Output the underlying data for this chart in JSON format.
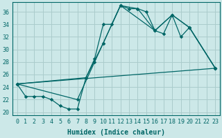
{
  "xlabel": "Humidex (Indice chaleur)",
  "bg_color": "#cce8e8",
  "grid_color": "#aacccc",
  "line_color": "#006666",
  "xlim": [
    -0.5,
    23.5
  ],
  "ylim": [
    19.5,
    37.5
  ],
  "xticks": [
    0,
    1,
    2,
    3,
    4,
    5,
    6,
    7,
    8,
    9,
    10,
    11,
    12,
    13,
    14,
    15,
    16,
    17,
    18,
    19,
    20,
    21,
    22,
    23
  ],
  "yticks": [
    20,
    22,
    24,
    26,
    28,
    30,
    32,
    34,
    36
  ],
  "line1_x": [
    0,
    1,
    2,
    3,
    4,
    5,
    6,
    7,
    8,
    9,
    10,
    11,
    12,
    13,
    14,
    15,
    16,
    17,
    18,
    19,
    20,
    23
  ],
  "line1_y": [
    24.5,
    22.5,
    22.5,
    22.5,
    22,
    21,
    20.5,
    20.5,
    25.5,
    28.5,
    34,
    34,
    37,
    36.5,
    36.5,
    36,
    33,
    32.5,
    35.5,
    32,
    33.5,
    27
  ],
  "line2_x": [
    0,
    7,
    9,
    10,
    12,
    16,
    18,
    20,
    23
  ],
  "line2_y": [
    24.5,
    22,
    28,
    31,
    37,
    33,
    35.5,
    33.5,
    27
  ],
  "line3_x": [
    0,
    8,
    10,
    12,
    14,
    16,
    18,
    20,
    23
  ],
  "line3_y": [
    24.5,
    25.5,
    31,
    37,
    36.5,
    33,
    35.5,
    33.5,
    27
  ]
}
